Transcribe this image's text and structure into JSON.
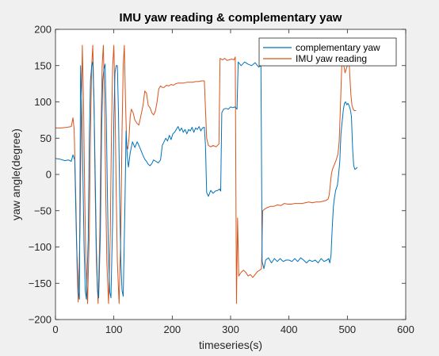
{
  "chart_data": {
    "type": "line",
    "title": "IMU yaw reading & complementary yaw",
    "xlabel": "timeseries(s)",
    "ylabel": "yaw angle(degree)",
    "xlim": [
      0,
      600
    ],
    "ylim": [
      -200,
      200
    ],
    "xticks": [
      0,
      100,
      200,
      300,
      400,
      500,
      600
    ],
    "yticks": [
      -200,
      -150,
      -100,
      -50,
      0,
      50,
      100,
      150,
      200
    ],
    "grid": false,
    "legend_position": "top-right",
    "series": [
      {
        "name": "complementary yaw",
        "color": "#0072BD",
        "points": [
          [
            0,
            22
          ],
          [
            8,
            21
          ],
          [
            16,
            19
          ],
          [
            22,
            20
          ],
          [
            27,
            18
          ],
          [
            30,
            27
          ],
          [
            33,
            20
          ],
          [
            36,
            -90
          ],
          [
            39,
            -160
          ],
          [
            41,
            -172
          ],
          [
            43,
            150
          ],
          [
            45,
            100
          ],
          [
            47,
            0
          ],
          [
            49,
            -100
          ],
          [
            51,
            -160
          ],
          [
            53,
            -172
          ],
          [
            56,
            -90
          ],
          [
            58,
            50
          ],
          [
            60,
            130
          ],
          [
            62,
            150
          ],
          [
            64,
            155
          ],
          [
            66,
            100
          ],
          [
            68,
            0
          ],
          [
            70,
            -100
          ],
          [
            72,
            -160
          ],
          [
            74,
            -170
          ],
          [
            77,
            -80
          ],
          [
            79,
            60
          ],
          [
            81,
            130
          ],
          [
            83,
            145
          ],
          [
            85,
            152
          ],
          [
            87,
            80
          ],
          [
            89,
            -30
          ],
          [
            91,
            -120
          ],
          [
            93,
            -162
          ],
          [
            95,
            -170
          ],
          [
            98,
            -60
          ],
          [
            100,
            80
          ],
          [
            102,
            140
          ],
          [
            104,
            150
          ],
          [
            106,
            150
          ],
          [
            108,
            80
          ],
          [
            110,
            -30
          ],
          [
            112,
            -120
          ],
          [
            114,
            -160
          ],
          [
            116,
            -168
          ],
          [
            119,
            -40
          ],
          [
            121,
            60
          ],
          [
            123,
            25
          ],
          [
            125,
            10
          ],
          [
            128,
            30
          ],
          [
            132,
            45
          ],
          [
            136,
            37
          ],
          [
            140,
            45
          ],
          [
            143,
            40
          ],
          [
            147,
            32
          ],
          [
            150,
            26
          ],
          [
            153,
            21
          ],
          [
            156,
            18
          ],
          [
            159,
            14
          ],
          [
            162,
            12
          ],
          [
            165,
            15
          ],
          [
            168,
            20
          ],
          [
            172,
            18
          ],
          [
            176,
            16
          ],
          [
            180,
            20
          ],
          [
            183,
            40
          ],
          [
            186,
            45
          ],
          [
            189,
            50
          ],
          [
            192,
            46
          ],
          [
            195,
            54
          ],
          [
            198,
            48
          ],
          [
            201,
            56
          ],
          [
            204,
            58
          ],
          [
            207,
            62
          ],
          [
            210,
            66
          ],
          [
            213,
            60
          ],
          [
            216,
            64
          ],
          [
            219,
            58
          ],
          [
            222,
            62
          ],
          [
            225,
            56
          ],
          [
            228,
            62
          ],
          [
            231,
            60
          ],
          [
            234,
            65
          ],
          [
            237,
            58
          ],
          [
            240,
            64
          ],
          [
            243,
            62
          ],
          [
            246,
            66
          ],
          [
            249,
            60
          ],
          [
            252,
            64
          ],
          [
            255,
            65
          ],
          [
            257,
            40
          ],
          [
            259,
            -25
          ],
          [
            262,
            -30
          ],
          [
            266,
            -22
          ],
          [
            270,
            -26
          ],
          [
            274,
            -23
          ],
          [
            278,
            -22
          ],
          [
            281,
            -20
          ],
          [
            283,
            -23
          ],
          [
            285,
            85
          ],
          [
            288,
            90
          ],
          [
            292,
            91
          ],
          [
            296,
            90
          ],
          [
            300,
            93
          ],
          [
            304,
            92
          ],
          [
            307,
            93
          ],
          [
            309,
            92
          ],
          [
            311,
            90
          ],
          [
            313,
            155
          ],
          [
            318,
            150
          ],
          [
            324,
            155
          ],
          [
            330,
            152
          ],
          [
            336,
            150
          ],
          [
            342,
            154
          ],
          [
            348,
            148
          ],
          [
            352,
            150
          ],
          [
            354,
            -120
          ],
          [
            357,
            -130
          ],
          [
            360,
            -118
          ],
          [
            365,
            -115
          ],
          [
            370,
            -122
          ],
          [
            375,
            -116
          ],
          [
            380,
            -120
          ],
          [
            385,
            -116
          ],
          [
            390,
            -120
          ],
          [
            395,
            -118
          ],
          [
            400,
            -118
          ],
          [
            405,
            -120
          ],
          [
            410,
            -116
          ],
          [
            415,
            -120
          ],
          [
            420,
            -115
          ],
          [
            425,
            -118
          ],
          [
            430,
            -122
          ],
          [
            435,
            -118
          ],
          [
            440,
            -120
          ],
          [
            445,
            -118
          ],
          [
            450,
            -122
          ],
          [
            455,
            -116
          ],
          [
            460,
            -120
          ],
          [
            465,
            -118
          ],
          [
            468,
            -116
          ],
          [
            470,
            -122
          ],
          [
            472,
            -112
          ],
          [
            474,
            -75
          ],
          [
            476,
            -45
          ],
          [
            478,
            -32
          ],
          [
            480,
            -22
          ],
          [
            483,
            -15
          ],
          [
            485,
            0
          ],
          [
            487,
            18
          ],
          [
            489,
            55
          ],
          [
            491,
            72
          ],
          [
            493,
            88
          ],
          [
            495,
            98
          ],
          [
            497,
            100
          ],
          [
            499,
            96
          ],
          [
            501,
            98
          ],
          [
            503,
            95
          ],
          [
            505,
            90
          ],
          [
            507,
            80
          ],
          [
            509,
            35
          ],
          [
            511,
            12
          ],
          [
            513,
            7
          ],
          [
            515,
            8
          ],
          [
            517,
            10
          ]
        ]
      },
      {
        "name": "IMU yaw reading",
        "color": "#D95319",
        "points": [
          [
            0,
            64
          ],
          [
            10,
            64
          ],
          [
            20,
            65
          ],
          [
            27,
            66
          ],
          [
            30,
            78
          ],
          [
            32,
            62
          ],
          [
            35,
            -40
          ],
          [
            37,
            -130
          ],
          [
            39,
            -176
          ],
          [
            42,
            -80
          ],
          [
            44,
            60
          ],
          [
            46,
            178
          ],
          [
            48,
            100
          ],
          [
            50,
            -20
          ],
          [
            52,
            -120
          ],
          [
            55,
            -178
          ],
          [
            58,
            -80
          ],
          [
            60,
            60
          ],
          [
            62,
            150
          ],
          [
            64,
            178
          ],
          [
            66,
            100
          ],
          [
            68,
            -20
          ],
          [
            70,
            -120
          ],
          [
            73,
            -178
          ],
          [
            76,
            -80
          ],
          [
            78,
            60
          ],
          [
            80,
            150
          ],
          [
            82,
            178
          ],
          [
            84,
            100
          ],
          [
            86,
            -20
          ],
          [
            88,
            -120
          ],
          [
            91,
            -178
          ],
          [
            94,
            -80
          ],
          [
            96,
            60
          ],
          [
            98,
            150
          ],
          [
            100,
            178
          ],
          [
            102,
            100
          ],
          [
            104,
            -20
          ],
          [
            106,
            -120
          ],
          [
            109,
            -178
          ],
          [
            112,
            -80
          ],
          [
            114,
            60
          ],
          [
            116,
            150
          ],
          [
            118,
            178
          ],
          [
            120,
            100
          ],
          [
            122,
            40
          ],
          [
            124,
            35
          ],
          [
            126,
            50
          ],
          [
            128,
            80
          ],
          [
            130,
            90
          ],
          [
            133,
            85
          ],
          [
            136,
            75
          ],
          [
            140,
            70
          ],
          [
            143,
            68
          ],
          [
            146,
            80
          ],
          [
            150,
            95
          ],
          [
            153,
            115
          ],
          [
            156,
            112
          ],
          [
            159,
            95
          ],
          [
            162,
            92
          ],
          [
            165,
            85
          ],
          [
            168,
            82
          ],
          [
            171,
            87
          ],
          [
            174,
            100
          ],
          [
            177,
            118
          ],
          [
            180,
            122
          ],
          [
            183,
            120
          ],
          [
            186,
            120
          ],
          [
            190,
            123
          ],
          [
            194,
            122
          ],
          [
            198,
            124
          ],
          [
            202,
            123
          ],
          [
            206,
            125
          ],
          [
            210,
            126
          ],
          [
            215,
            126
          ],
          [
            220,
            126
          ],
          [
            225,
            127
          ],
          [
            230,
            127
          ],
          [
            235,
            127
          ],
          [
            240,
            128
          ],
          [
            245,
            128
          ],
          [
            250,
            129
          ],
          [
            255,
            129
          ],
          [
            257,
            90
          ],
          [
            259,
            50
          ],
          [
            262,
            40
          ],
          [
            266,
            38
          ],
          [
            270,
            40
          ],
          [
            275,
            38
          ],
          [
            280,
            42
          ],
          [
            282,
            160
          ],
          [
            286,
            158
          ],
          [
            290,
            160
          ],
          [
            294,
            157
          ],
          [
            298,
            158
          ],
          [
            302,
            159
          ],
          [
            306,
            158
          ],
          [
            308,
            162
          ],
          [
            310,
            -178
          ],
          [
            312,
            -60
          ],
          [
            314,
            -140
          ],
          [
            318,
            -135
          ],
          [
            322,
            -132
          ],
          [
            326,
            -135
          ],
          [
            330,
            -140
          ],
          [
            334,
            -138
          ],
          [
            338,
            -142
          ],
          [
            342,
            -138
          ],
          [
            346,
            -134
          ],
          [
            350,
            -132
          ],
          [
            353,
            -130
          ],
          [
            355,
            -50
          ],
          [
            358,
            -48
          ],
          [
            362,
            -46
          ],
          [
            368,
            -44
          ],
          [
            374,
            -44
          ],
          [
            380,
            -42
          ],
          [
            386,
            -43
          ],
          [
            392,
            -40
          ],
          [
            398,
            -41
          ],
          [
            404,
            -41
          ],
          [
            410,
            -40
          ],
          [
            416,
            -40
          ],
          [
            422,
            -40
          ],
          [
            428,
            -39
          ],
          [
            434,
            -38
          ],
          [
            440,
            -39
          ],
          [
            446,
            -38
          ],
          [
            452,
            -38
          ],
          [
            458,
            -37
          ],
          [
            463,
            -36
          ],
          [
            467,
            -34
          ],
          [
            469,
            -28
          ],
          [
            471,
            -12
          ],
          [
            473,
            2
          ],
          [
            475,
            8
          ],
          [
            478,
            14
          ],
          [
            481,
            20
          ],
          [
            484,
            28
          ],
          [
            486,
            45
          ],
          [
            488,
            90
          ],
          [
            490,
            140
          ],
          [
            492,
            178
          ],
          [
            494,
            150
          ],
          [
            496,
            140
          ],
          [
            498,
            145
          ],
          [
            500,
            150
          ],
          [
            502,
            170
          ],
          [
            504,
            140
          ],
          [
            506,
            110
          ],
          [
            508,
            95
          ],
          [
            510,
            90
          ],
          [
            512,
            88
          ],
          [
            515,
            88
          ]
        ]
      }
    ]
  }
}
